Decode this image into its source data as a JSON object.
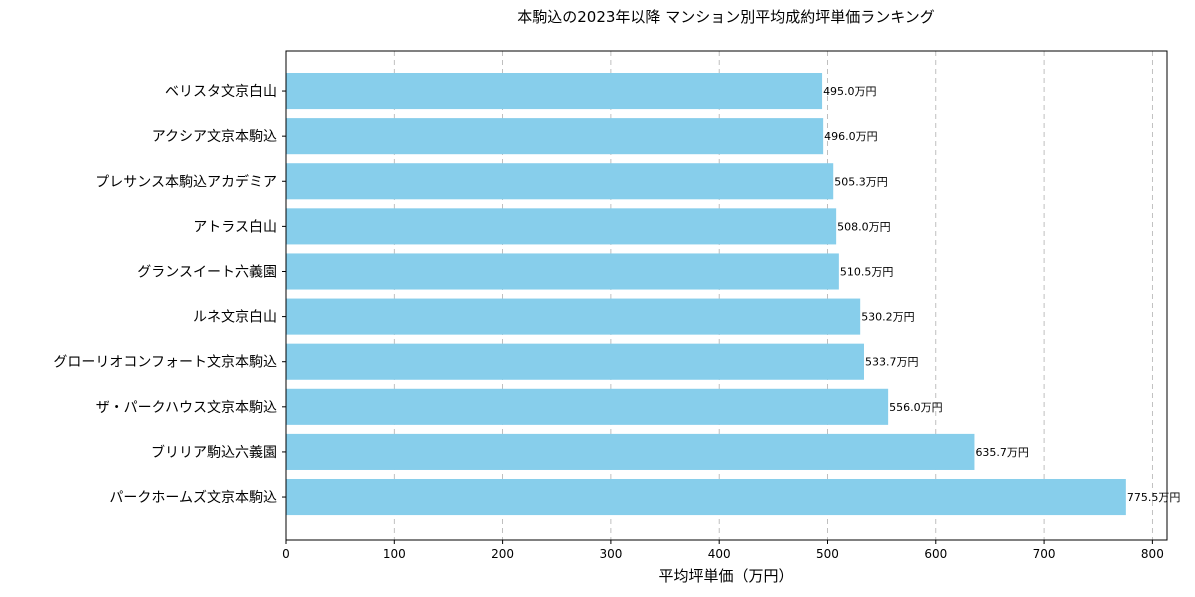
{
  "chart_data": {
    "type": "bar",
    "orientation": "horizontal",
    "title": "本駒込の2023年以降 マンション別平均成約坪単価ランキング",
    "xlabel": "平均坪単価（万円）",
    "ylabel": "",
    "xlim": [
      0,
      813.5
    ],
    "xticks": [
      0,
      100,
      200,
      300,
      400,
      500,
      600,
      700,
      800
    ],
    "grid": "x-dashed",
    "bar_color": "#87ceeb",
    "categories": [
      "ベリスタ文京白山",
      "アクシア文京本駒込",
      "プレサンス本駒込アカデミア",
      "アトラス白山",
      "グランスイート六義園",
      "ルネ文京白山",
      "グローリオコンフォート文京本駒込",
      "ザ・パークハウス文京本駒込",
      "ブリリア駒込六義園",
      "パークホームズ文京本駒込"
    ],
    "values": [
      495.0,
      496.0,
      505.3,
      508.0,
      510.5,
      530.2,
      533.7,
      556.0,
      635.7,
      775.5
    ],
    "data_labels": [
      "495.0万円",
      "496.0万円",
      "505.3万円",
      "508.0万円",
      "510.5万円",
      "530.2万円",
      "533.7万円",
      "556.0万円",
      "635.7万円",
      "775.5万円"
    ]
  }
}
